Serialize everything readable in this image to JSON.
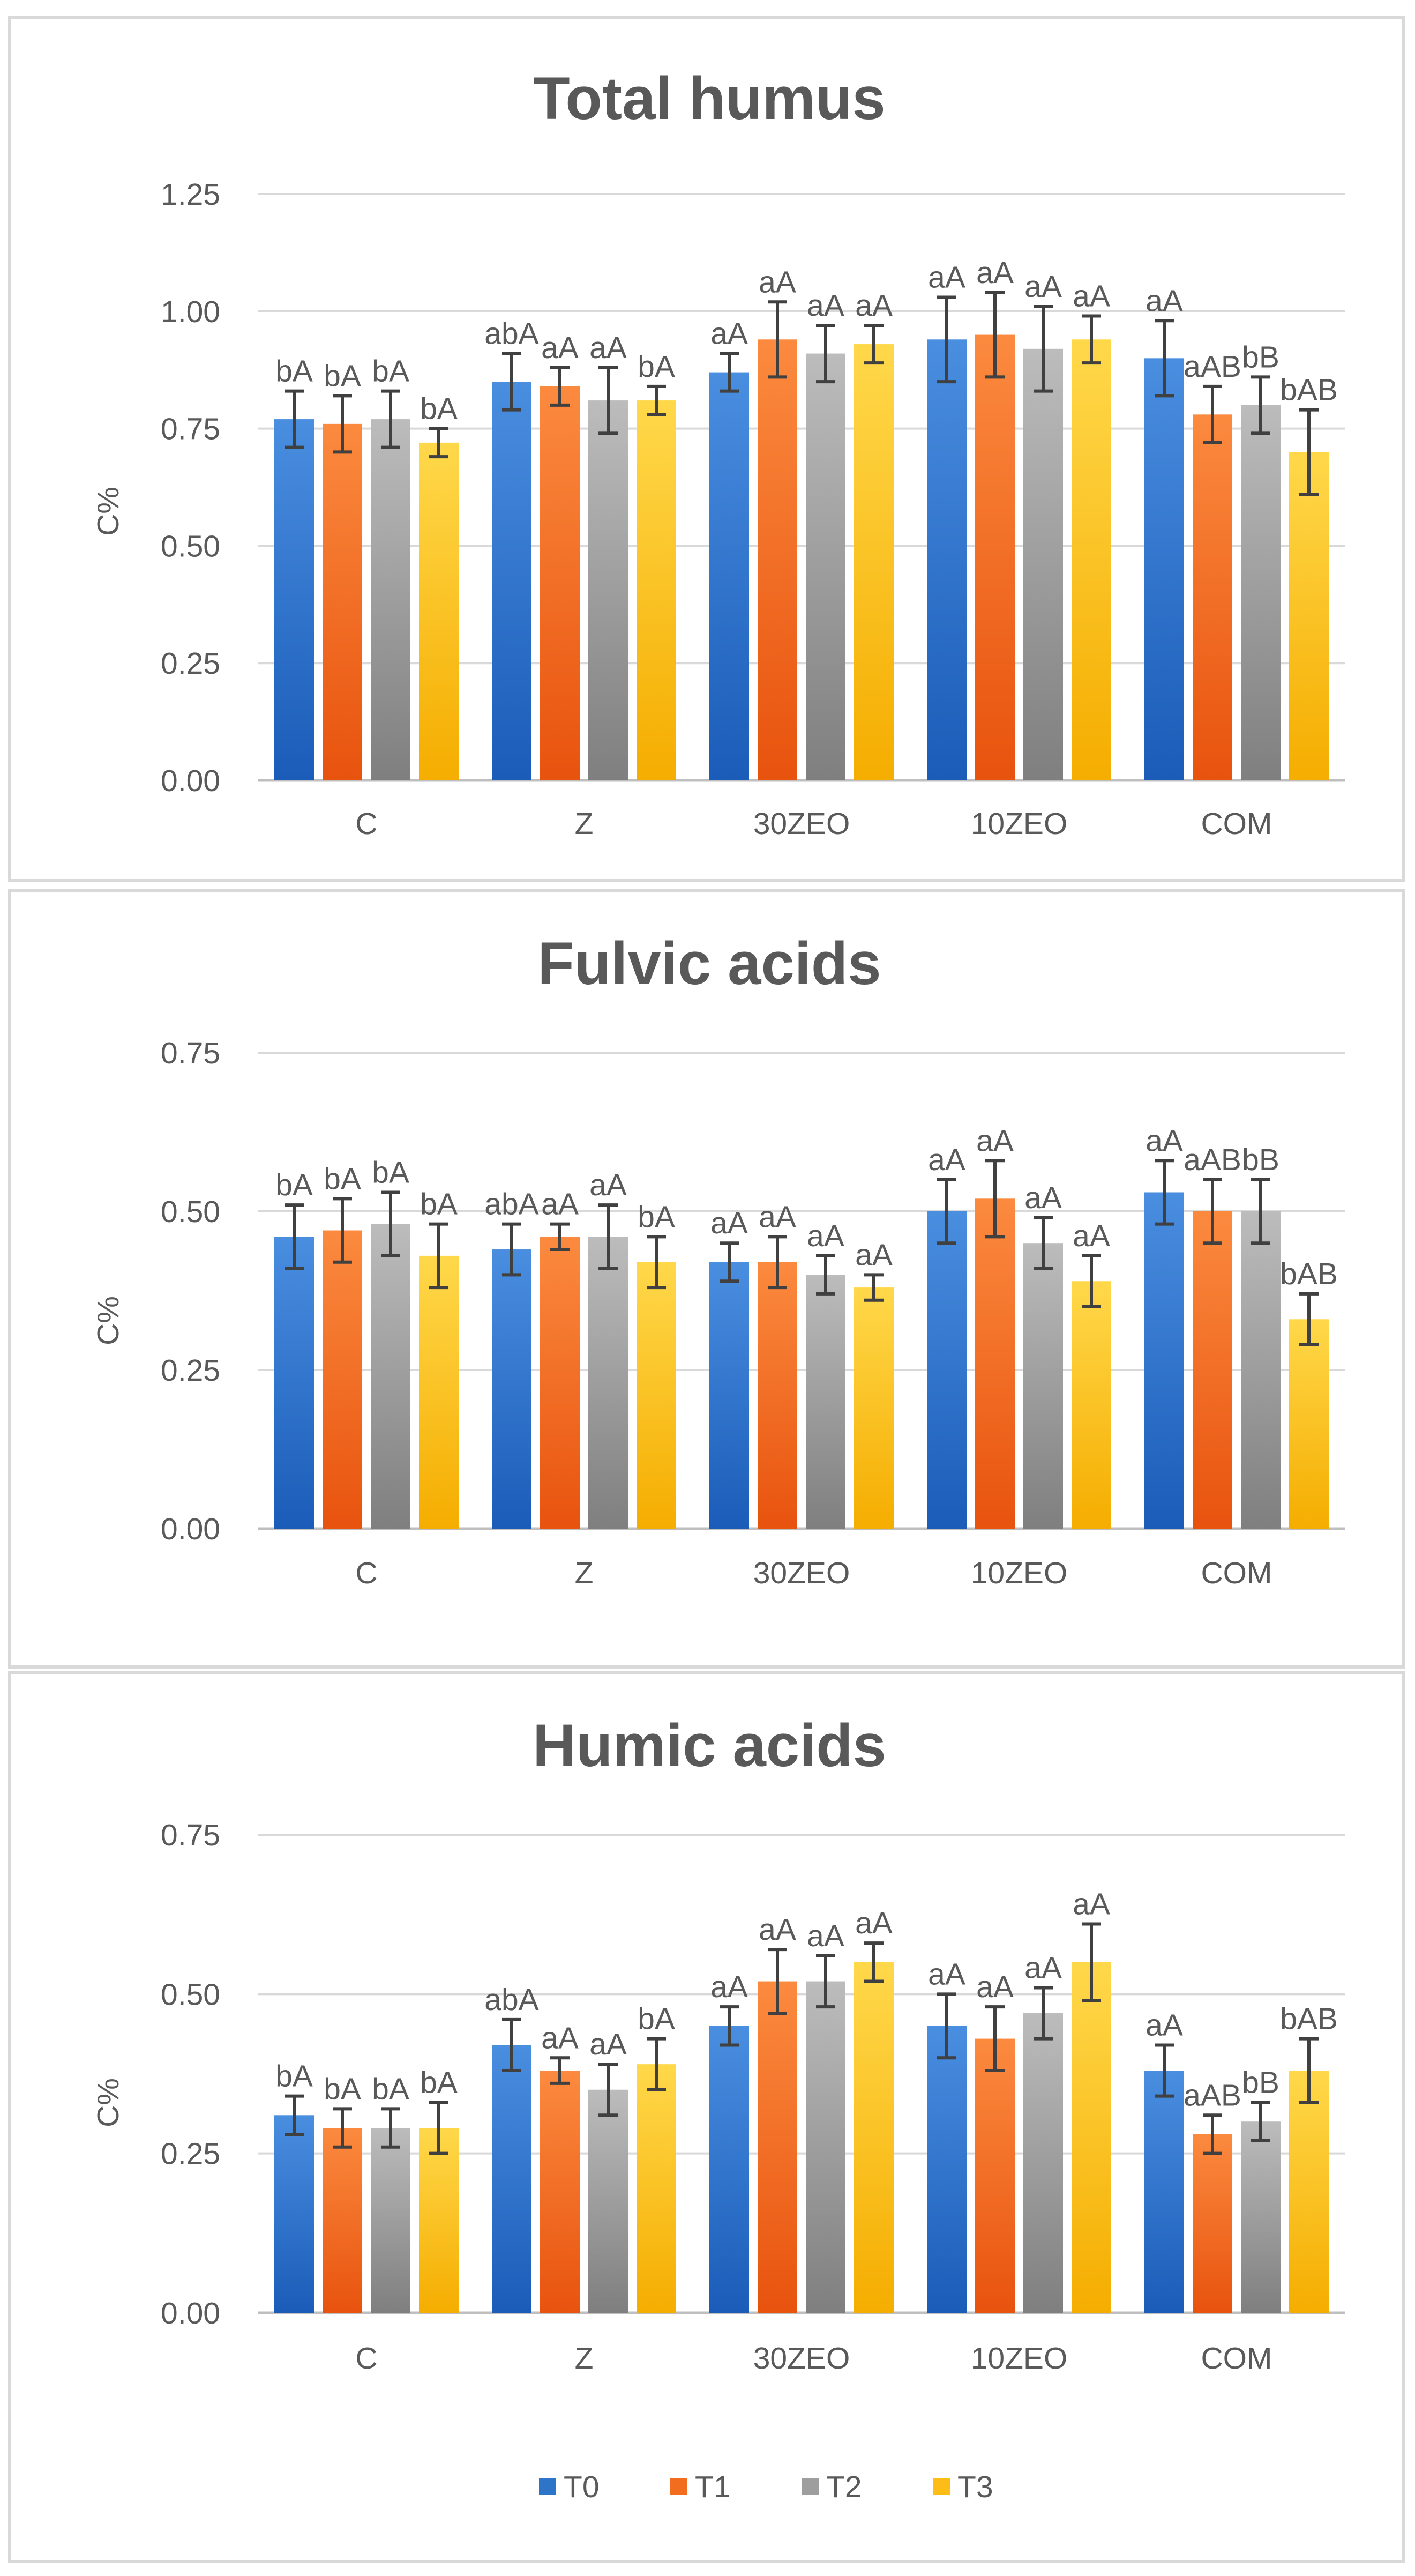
{
  "chart_data": [
    {
      "type": "bar",
      "title": "Total humus",
      "ylabel": "C%",
      "xlabel": "",
      "ylim": [
        0,
        1.25
      ],
      "yticks": [
        "0.00",
        "0.25",
        "0.50",
        "0.75",
        "1.00",
        "1.25"
      ],
      "categories": [
        "C",
        "Z",
        "30ZEO",
        "10ZEO",
        "COM"
      ],
      "series": [
        {
          "name": "T0",
          "values": [
            0.77,
            0.85,
            0.87,
            0.94,
            0.9
          ],
          "errors": [
            0.06,
            0.06,
            0.04,
            0.09,
            0.08
          ],
          "labels": [
            "bA",
            "abA",
            "aA",
            "aA",
            "aA"
          ]
        },
        {
          "name": "T1",
          "values": [
            0.76,
            0.84,
            0.94,
            0.95,
            0.78
          ],
          "errors": [
            0.06,
            0.04,
            0.08,
            0.09,
            0.06
          ],
          "labels": [
            "bA",
            "aA",
            "aA",
            "aA",
            "aAB"
          ]
        },
        {
          "name": "T2",
          "values": [
            0.77,
            0.81,
            0.91,
            0.92,
            0.8
          ],
          "errors": [
            0.06,
            0.07,
            0.06,
            0.09,
            0.06
          ],
          "labels": [
            "bA",
            "aA",
            "aA",
            "aA",
            "bB"
          ]
        },
        {
          "name": "T3",
          "values": [
            0.72,
            0.81,
            0.93,
            0.94,
            0.7
          ],
          "errors": [
            0.03,
            0.03,
            0.04,
            0.05,
            0.09
          ],
          "labels": [
            "bA",
            "bA",
            "aA",
            "aA",
            "bAB"
          ]
        }
      ]
    },
    {
      "type": "bar",
      "title": "Fulvic acids",
      "ylabel": "C%",
      "xlabel": "",
      "ylim": [
        0,
        0.75
      ],
      "yticks": [
        "0.00",
        "0.25",
        "0.50",
        "0.75"
      ],
      "categories": [
        "C",
        "Z",
        "30ZEO",
        "10ZEO",
        "COM"
      ],
      "series": [
        {
          "name": "T0",
          "values": [
            0.46,
            0.44,
            0.42,
            0.5,
            0.53
          ],
          "errors": [
            0.05,
            0.04,
            0.03,
            0.05,
            0.05
          ],
          "labels": [
            "bA",
            "abA",
            "aA",
            "aA",
            "aA"
          ]
        },
        {
          "name": "T1",
          "values": [
            0.47,
            0.46,
            0.42,
            0.52,
            0.5
          ],
          "errors": [
            0.05,
            0.02,
            0.04,
            0.06,
            0.05
          ],
          "labels": [
            "bA",
            "aA",
            "aA",
            "aA",
            "aAB"
          ]
        },
        {
          "name": "T2",
          "values": [
            0.48,
            0.46,
            0.4,
            0.45,
            0.5
          ],
          "errors": [
            0.05,
            0.05,
            0.03,
            0.04,
            0.05
          ],
          "labels": [
            "bA",
            "aA",
            "aA",
            "aA",
            "bB"
          ]
        },
        {
          "name": "T3",
          "values": [
            0.43,
            0.42,
            0.38,
            0.39,
            0.33
          ],
          "errors": [
            0.05,
            0.04,
            0.02,
            0.04,
            0.04
          ],
          "labels": [
            "bA",
            "bA",
            "aA",
            "aA",
            "bAB"
          ]
        }
      ]
    },
    {
      "type": "bar",
      "title": "Humic acids",
      "ylabel": "C%",
      "xlabel": "",
      "ylim": [
        0,
        0.75
      ],
      "yticks": [
        "0.00",
        "0.25",
        "0.50",
        "0.75"
      ],
      "categories": [
        "C",
        "Z",
        "30ZEO",
        "10ZEO",
        "COM"
      ],
      "series": [
        {
          "name": "T0",
          "values": [
            0.31,
            0.42,
            0.45,
            0.45,
            0.38
          ],
          "errors": [
            0.03,
            0.04,
            0.03,
            0.05,
            0.04
          ],
          "labels": [
            "bA",
            "abA",
            "aA",
            "aA",
            "aA"
          ]
        },
        {
          "name": "T1",
          "values": [
            0.29,
            0.38,
            0.52,
            0.43,
            0.28
          ],
          "errors": [
            0.03,
            0.02,
            0.05,
            0.05,
            0.03
          ],
          "labels": [
            "bA",
            "aA",
            "aA",
            "aA",
            "aAB"
          ]
        },
        {
          "name": "T2",
          "values": [
            0.29,
            0.35,
            0.52,
            0.47,
            0.3
          ],
          "errors": [
            0.03,
            0.04,
            0.04,
            0.04,
            0.03
          ],
          "labels": [
            "bA",
            "aA",
            "aA",
            "aA",
            "bB"
          ]
        },
        {
          "name": "T3",
          "values": [
            0.29,
            0.39,
            0.55,
            0.55,
            0.38
          ],
          "errors": [
            0.04,
            0.04,
            0.03,
            0.06,
            0.05
          ],
          "labels": [
            "bA",
            "bA",
            "aA",
            "aA",
            "bAB"
          ]
        }
      ]
    }
  ],
  "legend": {
    "items": [
      {
        "name": "T0",
        "color": "#2e75c9"
      },
      {
        "name": "T1",
        "color": "#f26d1e"
      },
      {
        "name": "T2",
        "color": "#9e9e9e"
      },
      {
        "name": "T3",
        "color": "#fdbd16"
      }
    ]
  },
  "colors": {
    "T0": {
      "light": "#4a8ee0",
      "dark": "#1a5cb8"
    },
    "T1": {
      "light": "#fb8a3f",
      "dark": "#e8530e"
    },
    "T2": {
      "light": "#bcbcbc",
      "dark": "#7f7f7f"
    },
    "T3": {
      "light": "#ffd84a",
      "dark": "#f5ad00"
    },
    "grid": "#d9d9d9",
    "axis": "#bfbfbf",
    "error": "#404040"
  }
}
